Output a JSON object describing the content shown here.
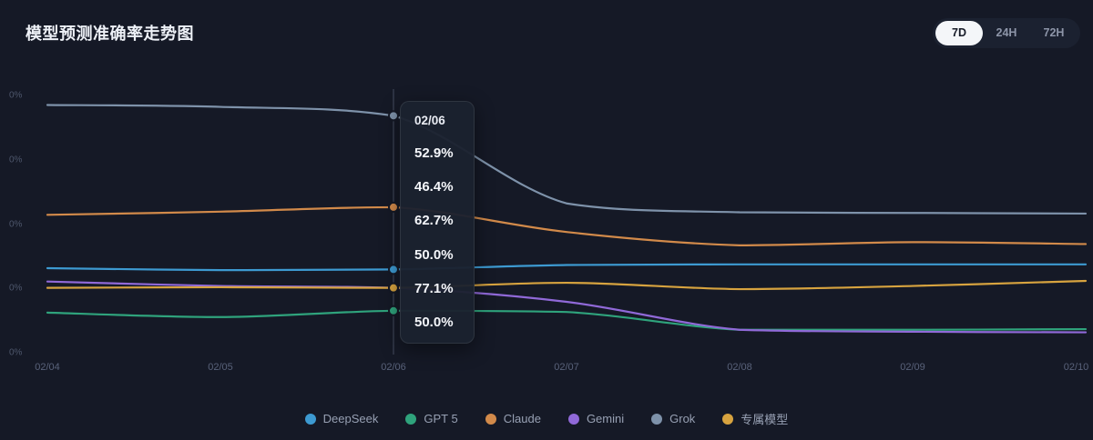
{
  "header": {
    "title": "模型预测准确率走势图",
    "range_buttons": [
      {
        "label": "7D",
        "active": true
      },
      {
        "label": "24H",
        "active": false
      },
      {
        "label": "72H",
        "active": false
      }
    ]
  },
  "tooltip": {
    "date": "02/06",
    "values": [
      "52.9%",
      "46.4%",
      "62.7%",
      "50.0%",
      "77.1%",
      "50.0%"
    ]
  },
  "chart_data": {
    "type": "line",
    "title": "模型预测准确率走势图",
    "x": [
      "02/04",
      "02/05",
      "02/06",
      "02/07",
      "02/08",
      "02/09",
      "02/10"
    ],
    "y_axis_labels": [
      "0%",
      "0%",
      "0%",
      "0%",
      "0%"
    ],
    "ylim": [
      39.5,
      81.3
    ],
    "grid": false,
    "legend_position": "bottom",
    "highlight_x": "02/06",
    "series": [
      {
        "name": "DeepSeek",
        "color": "#3d9ad1",
        "values": [
          53.1,
          52.8,
          52.9,
          53.6,
          53.7,
          53.7,
          53.7
        ]
      },
      {
        "name": "GPT 5",
        "color": "#2fa37c",
        "values": [
          46.1,
          45.4,
          46.4,
          46.2,
          43.4,
          43.4,
          43.5
        ]
      },
      {
        "name": "Claude",
        "color": "#d28a4a",
        "values": [
          61.5,
          62.0,
          62.7,
          58.8,
          56.7,
          57.2,
          56.9
        ]
      },
      {
        "name": "Gemini",
        "color": "#9069d8",
        "values": [
          51.0,
          50.3,
          50.0,
          47.8,
          43.4,
          43.1,
          43.0
        ]
      },
      {
        "name": "Grok",
        "color": "#7e92aa",
        "values": [
          78.8,
          78.5,
          77.1,
          63.3,
          61.9,
          61.8,
          61.7
        ]
      },
      {
        "name": "专属模型",
        "color": "#d7a33f",
        "values": [
          50.0,
          50.1,
          50.0,
          50.8,
          49.8,
          50.3,
          51.1
        ]
      }
    ],
    "highlight_line_color": "#454d60",
    "background_color": "#151926"
  }
}
